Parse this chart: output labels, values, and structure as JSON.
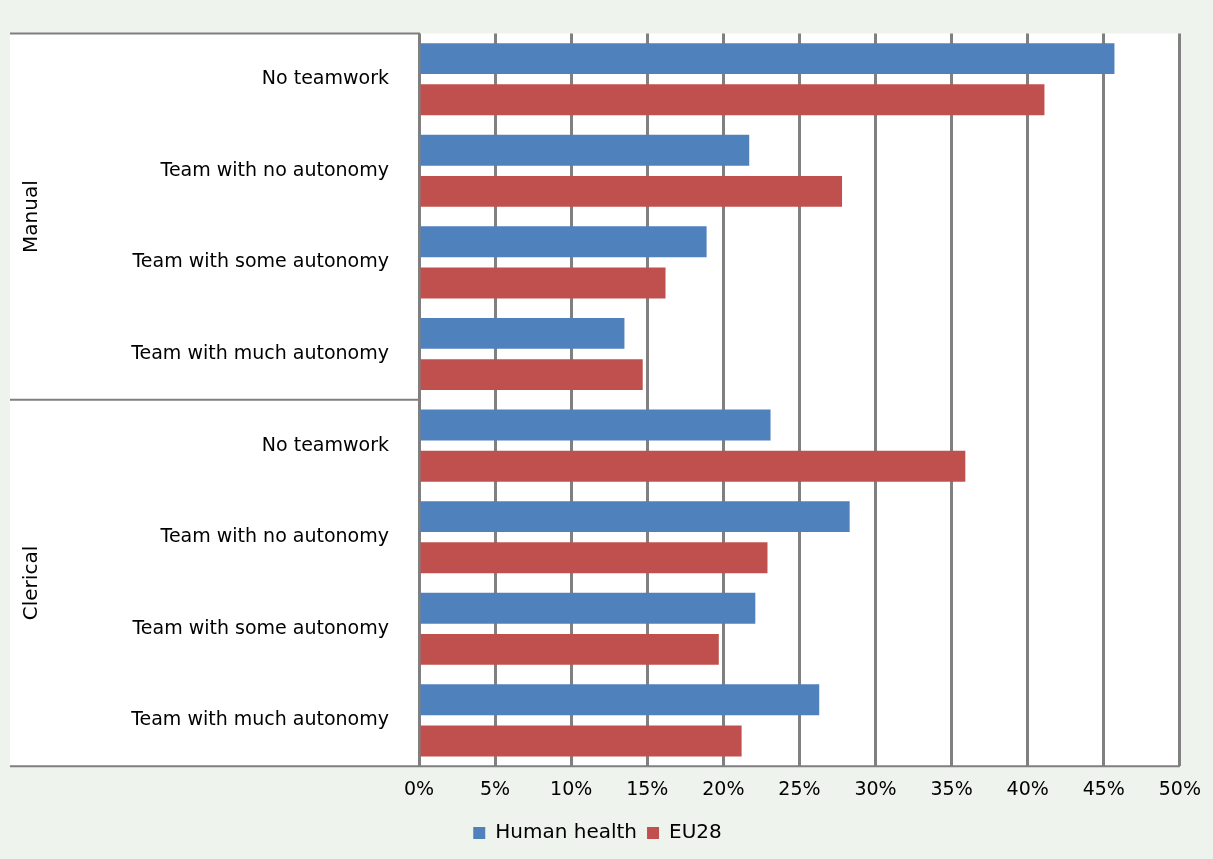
{
  "chart_data": {
    "type": "bar",
    "orientation": "horizontal",
    "categories": [
      "No teamwork",
      "Team with no autonomy",
      "Team with some autonomy",
      "Team with much autonomy",
      "No teamwork",
      "Team with no autonomy",
      "Team with some autonomy",
      "Team with much autonomy"
    ],
    "series": [
      {
        "name": "Human health",
        "color": "#4f81bd",
        "values": [
          45.7,
          21.7,
          18.9,
          13.5,
          23.1,
          28.3,
          22.1,
          26.3
        ]
      },
      {
        "name": "EU28",
        "color": "#c0504d",
        "values": [
          41.1,
          27.8,
          16.2,
          14.7,
          35.9,
          22.9,
          19.7,
          21.2
        ]
      }
    ],
    "xlim": [
      0,
      50
    ],
    "xticks": [
      {
        "value": 0,
        "label": "0%"
      },
      {
        "value": 5,
        "label": "5%"
      },
      {
        "value": 10,
        "label": "10%"
      },
      {
        "value": 15,
        "label": "15%"
      },
      {
        "value": 20,
        "label": "20%"
      },
      {
        "value": 25,
        "label": "25%"
      },
      {
        "value": 30,
        "label": "30%"
      },
      {
        "value": 35,
        "label": "35%"
      },
      {
        "value": 40,
        "label": "40%"
      },
      {
        "value": 45,
        "label": "45%"
      },
      {
        "value": 50,
        "label": "50%"
      }
    ],
    "annotations": [
      "Manual",
      "Clerical"
    ],
    "grid": "x",
    "legend": "bottom"
  }
}
